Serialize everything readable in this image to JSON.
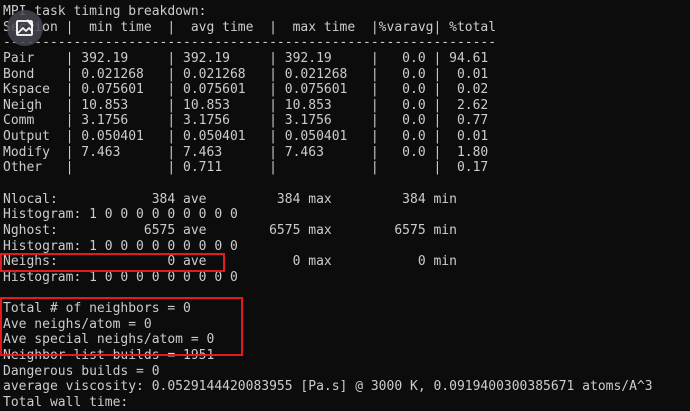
{
  "terminal": {
    "title_line": "MPI task timing breakdown:",
    "header": "Section |  min time  |  avg time  |  max time  |%varavg| %total",
    "separator": "---------------------------------------------------------------",
    "timing_rows": [
      "Pair    | 392.19     | 392.19     | 392.19     |   0.0 | 94.61",
      "Bond    | 0.021268   | 0.021268   | 0.021268   |   0.0 |  0.01",
      "Kspace  | 0.075601   | 0.075601   | 0.075601   |   0.0 |  0.02",
      "Neigh   | 10.853     | 10.853     | 10.853     |   0.0 |  2.62",
      "Comm    | 3.1756     | 3.1756     | 3.1756     |   0.0 |  0.77",
      "Output  | 0.050401   | 0.050401   | 0.050401   |   0.0 |  0.01",
      "Modify  | 7.463      | 7.463      | 7.463      |   0.0 |  1.80",
      "Other   |            | 0.711      |            |       |  0.17"
    ],
    "stats_lines": [
      "Nlocal:            384 ave         384 max         384 min",
      "Histogram: 1 0 0 0 0 0 0 0 0 0",
      "Nghost:           6575 ave        6575 max        6575 min",
      "Histogram: 1 0 0 0 0 0 0 0 0 0",
      "Neighs:              0 ave           0 max           0 min",
      "Histogram: 1 0 0 0 0 0 0 0 0 0"
    ],
    "summary_lines": [
      "Total # of neighbors = 0",
      "Ave neighs/atom = 0",
      "Ave special neighs/atom = 0",
      "Neighbor list builds = 1951",
      "Dangerous builds = 0",
      "average viscosity: 0.0529144420083955 [Pa.s] @ 3000 K, 0.0919400300385671 atoms/A^3",
      "Total wall time:"
    ]
  },
  "colors": {
    "background": "#0c0c0c",
    "text": "#cccccc",
    "highlight": "#e8191c"
  },
  "overlay_icon": "image-icon"
}
